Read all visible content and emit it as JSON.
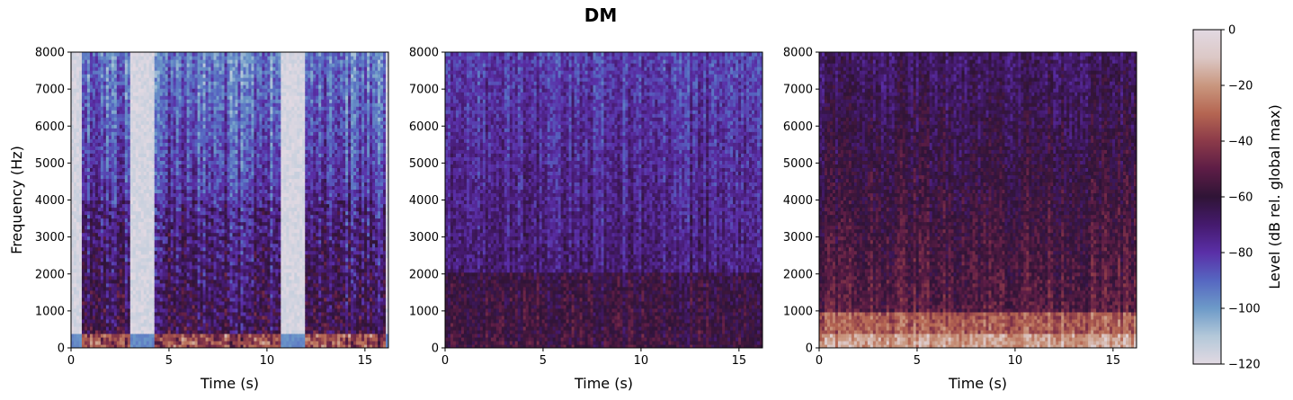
{
  "figure": {
    "title": "DM"
  },
  "colors": {
    "colormap": [
      "#e2d9e2",
      "#b3c8d9",
      "#6d9ac8",
      "#5667c1",
      "#5a2fa7",
      "#451a6e",
      "#2f1436",
      "#5d1d46",
      "#8b3a49",
      "#b56652",
      "#c9977f",
      "#dcc8c6",
      "#e2d9e2"
    ]
  },
  "chart_data": [
    {
      "type": "heatmap",
      "panel": 1,
      "xlabel": "Time (s)",
      "ylabel": "Frequency (Hz)",
      "xlim": [
        0,
        16.2
      ],
      "ylim": [
        0,
        8000
      ],
      "xticks": [
        "0",
        "5",
        "10",
        "15"
      ],
      "yticks": [
        "0",
        "1000",
        "2000",
        "3000",
        "4000",
        "5000",
        "6000",
        "7000",
        "8000"
      ],
      "speech_segments_s": [
        [
          0.6,
          3.0
        ],
        [
          4.3,
          10.7
        ],
        [
          11.9,
          16.1
        ]
      ],
      "level_range_db": [
        -120,
        -60
      ]
    },
    {
      "type": "heatmap",
      "panel": 2,
      "xlabel": "Time (s)",
      "ylabel": "",
      "xlim": [
        0,
        16.2
      ],
      "ylim": [
        0,
        8000
      ],
      "xticks": [
        "0",
        "5",
        "10",
        "15"
      ],
      "yticks": [
        "0",
        "1000",
        "2000",
        "3000",
        "4000",
        "5000",
        "6000",
        "7000",
        "8000"
      ],
      "level_range_db": [
        -100,
        -60
      ]
    },
    {
      "type": "heatmap",
      "panel": 3,
      "xlabel": "Time (s)",
      "ylabel": "",
      "xlim": [
        0,
        16.2
      ],
      "ylim": [
        0,
        8000
      ],
      "xticks": [
        "0",
        "5",
        "10",
        "15"
      ],
      "yticks": [
        "0",
        "1000",
        "2000",
        "3000",
        "4000",
        "5000",
        "6000",
        "7000",
        "8000"
      ],
      "level_range_db": [
        -90,
        -35
      ]
    }
  ],
  "colorbar": {
    "label": "Level (dB rel. global max)",
    "range": [
      -120,
      0
    ],
    "ticks": [
      "0",
      "−20",
      "−40",
      "−60",
      "−80",
      "−100",
      "−120"
    ]
  }
}
